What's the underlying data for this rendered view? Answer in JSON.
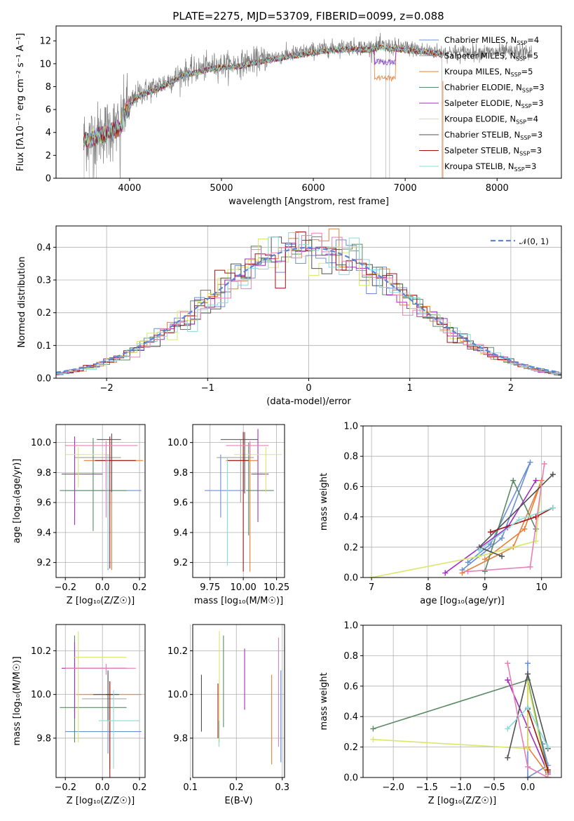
{
  "figure_title": "PLATE=2275, MJD=53709, FIBERID=0099, z=0.088",
  "colors": {
    "Chabrier MILES": "#6b8fd6",
    "Salpeter MILES": "#a0a0a0",
    "Kroupa MILES": "#e8803a",
    "Chabrier ELODIE": "#5a8a64",
    "Salpeter ELODIE": "#a52fbf",
    "Kroupa ELODIE": "#d8e86a",
    "Chabrier STELIB": "#505050",
    "Salpeter STELIB": "#a01414",
    "Kroupa STELIB": "#8adada",
    "data": "#808080",
    "pink": "#e880b8"
  },
  "chart_data": [
    {
      "id": "spectrum",
      "type": "line",
      "title": "PLATE=2275, MJD=53709, FIBERID=0099, z=0.088",
      "xlabel": "wavelength [Angstrom, rest frame]",
      "ylabel": "Flux [fλ10⁻¹⁷ erg cm⁻² s⁻¹ A⁻¹]",
      "xlim": [
        3200,
        8700
      ],
      "ylim": [
        0,
        13.3
      ],
      "xticks": [
        4000,
        5000,
        6000,
        7000,
        8000
      ],
      "yticks": [
        0,
        2,
        4,
        6,
        8,
        10,
        12
      ],
      "legend_position": "right",
      "legend": [
        {
          "name": "Chabrier MILES, N",
          "sub": "SSP",
          "tail": "=4",
          "color": "#6b8fd6"
        },
        {
          "name": "Salpeter MILES, N",
          "sub": "SSP",
          "tail": "=5",
          "color": "#a0a0a0"
        },
        {
          "name": "Kroupa MILES, N",
          "sub": "SSP",
          "tail": "=5",
          "color": "#e8803a"
        },
        {
          "name": "Chabrier ELODIE, N",
          "sub": "SSP",
          "tail": "=3",
          "color": "#5a8a64"
        },
        {
          "name": "Salpeter ELODIE, N",
          "sub": "SSP",
          "tail": "=3",
          "color": "#a52fbf"
        },
        {
          "name": "Kroupa ELODIE, N",
          "sub": "SSP",
          "tail": "=4",
          "color": "#d8e86a"
        },
        {
          "name": "Chabrier STELIB, N",
          "sub": "SSP",
          "tail": "=3",
          "color": "#505050"
        },
        {
          "name": "Salpeter STELIB, N",
          "sub": "SSP",
          "tail": "=3",
          "color": "#a01414"
        },
        {
          "name": "Kroupa STELIB, N",
          "sub": "SSP",
          "tail": "=3",
          "color": "#8adada"
        }
      ],
      "continuum_knots": {
        "x": [
          3500,
          3700,
          3900,
          3950,
          4100,
          4300,
          4600,
          4900,
          5200,
          5500,
          5800,
          6100,
          6400,
          6600,
          6700,
          7000,
          7200,
          7400
        ],
        "y": [
          3.4,
          4.0,
          4.6,
          6.0,
          7.4,
          8.0,
          9.2,
          9.8,
          10.0,
          10.5,
          10.9,
          11.3,
          11.5,
          11.4,
          11.6,
          11.4,
          11.2,
          11.0
        ]
      }
    },
    {
      "id": "residuals",
      "type": "histogram",
      "xlabel": "(data-model)/error",
      "ylabel": "Normed distribution",
      "xlim": [
        -2.5,
        2.5
      ],
      "ylim": [
        0,
        0.465
      ],
      "xticks": [
        -2,
        -1,
        0,
        1,
        2
      ],
      "yticks": [
        0.0,
        0.1,
        0.2,
        0.3,
        0.4
      ],
      "grid": true,
      "legend_position": "top-right",
      "legend": [
        {
          "name": "𝒩(0, 1)",
          "color": "#5b86d6",
          "style": "dashed"
        }
      ],
      "bin_width": 0.1
    },
    {
      "id": "age_vs_Z",
      "type": "errorbar",
      "xlabel": "Z [log₁₀(Z/Z☉)]",
      "ylabel": "age  [log₁₀(age/yr)]",
      "xlim": [
        -0.25,
        0.23
      ],
      "ylim": [
        9.1,
        10.12
      ],
      "xticks": [
        -0.2,
        0.0,
        0.2
      ],
      "yticks": [
        9.2,
        9.4,
        9.6,
        9.8,
        10.0
      ],
      "grid": true,
      "points": [
        {
          "x": 0.03,
          "y": 9.68,
          "xerr": [
            0.23,
            0.18
          ],
          "yerr": [
            0.53,
            0.17
          ],
          "color": "#6b8fd6"
        },
        {
          "x": 0.02,
          "y": 9.9,
          "xerr": [
            0.17,
            0.08
          ],
          "yerr": [
            0.2,
            0.1
          ],
          "color": "#a0a0a0"
        },
        {
          "x": 0.05,
          "y": 9.88,
          "xerr": [
            0.15,
            0.17
          ],
          "yerr": [
            0.73,
            0.12
          ],
          "color": "#e8803a"
        },
        {
          "x": -0.05,
          "y": 9.68,
          "xerr": [
            0.18,
            0.18
          ],
          "yerr": [
            0.27,
            0.35
          ],
          "color": "#5a8a64"
        },
        {
          "x": -0.15,
          "y": 9.79,
          "xerr": [
            0.07,
            0.15
          ],
          "yerr": [
            0.34,
            0.25
          ],
          "color": "#a52fbf"
        },
        {
          "x": -0.13,
          "y": 9.92,
          "xerr": [
            0.07,
            0.17
          ],
          "yerr": [
            0.22,
            0.05
          ],
          "color": "#d8e86a"
        },
        {
          "x": 0.05,
          "y": 10.02,
          "xerr": [
            0.08,
            0.05
          ],
          "yerr": [
            0.35,
            0.04
          ],
          "color": "#505050"
        },
        {
          "x": 0.04,
          "y": 9.88,
          "xerr": [
            0.08,
            0.14
          ],
          "yerr": [
            0.72,
            0.16
          ],
          "color": "#a01414"
        },
        {
          "x": 0.03,
          "y": 9.8,
          "xerr": [
            0.0,
            0.0
          ],
          "yerr": [
            0.64,
            0.12
          ],
          "color": "#8adada"
        },
        {
          "x": 0.02,
          "y": 9.98,
          "xerr": [
            0.22,
            0.17
          ],
          "yerr": [
            0.48,
            0.03
          ],
          "color": "#e880b8"
        }
      ]
    },
    {
      "id": "age_vs_mass",
      "type": "errorbar",
      "xlabel": "mass [log₁₀(M/M☉)]",
      "ylabel": "",
      "xlim": [
        9.62,
        10.31
      ],
      "ylim": [
        9.1,
        10.12
      ],
      "xticks": [
        9.75,
        10.0,
        10.25
      ],
      "yticks": [
        9.2,
        9.4,
        9.6,
        9.8,
        10.0
      ],
      "grid": true,
      "points": [
        {
          "x": 9.83,
          "y": 9.68,
          "xerr": [
            0.12,
            0.18
          ],
          "yerr": [
            0.18,
            0.24
          ],
          "color": "#6b8fd6"
        },
        {
          "x": 9.98,
          "y": 9.9,
          "xerr": [
            0.18,
            0.1
          ],
          "yerr": [
            0.3,
            0.12
          ],
          "color": "#a0a0a0"
        },
        {
          "x": 10.05,
          "y": 9.88,
          "xerr": [
            0.18,
            0.06
          ],
          "yerr": [
            0.74,
            0.12
          ],
          "color": "#e8803a"
        },
        {
          "x": 10.04,
          "y": 9.68,
          "xerr": [
            0.02,
            0.19
          ],
          "yerr": [
            0.3,
            0.32
          ],
          "color": "#5a8a64"
        },
        {
          "x": 10.11,
          "y": 9.79,
          "xerr": [
            0.05,
            0.08
          ],
          "yerr": [
            0.32,
            0.3
          ],
          "color": "#a52fbf"
        },
        {
          "x": 10.17,
          "y": 9.92,
          "xerr": [
            0.24,
            0.12
          ],
          "yerr": [
            0.25,
            0.05
          ],
          "color": "#d8e86a"
        },
        {
          "x": 10.01,
          "y": 10.02,
          "xerr": [
            0.18,
            0.1
          ],
          "yerr": [
            0.36,
            0.05
          ],
          "color": "#505050"
        },
        {
          "x": 10.0,
          "y": 9.88,
          "xerr": [
            0.12,
            0.04
          ],
          "yerr": [
            0.74,
            0.19
          ],
          "color": "#a01414"
        },
        {
          "x": 9.88,
          "y": 9.8,
          "xerr": [
            0.0,
            0.0
          ],
          "yerr": [
            0.62,
            0.1
          ],
          "color": "#8adada"
        },
        {
          "x": 10.05,
          "y": 9.98,
          "xerr": [
            0.18,
            0.14
          ],
          "yerr": [
            0.08,
            0.03
          ],
          "color": "#e880b8"
        }
      ]
    },
    {
      "id": "weight_vs_age",
      "type": "line",
      "xlabel": "age  [log₁₀(age/yr)]",
      "ylabel": "mass weight",
      "xlim": [
        6.85,
        10.35
      ],
      "ylim": [
        0,
        1.0
      ],
      "xticks": [
        7,
        8,
        9,
        10
      ],
      "yticks": [
        0.0,
        0.2,
        0.4,
        0.6,
        0.8,
        1.0
      ],
      "grid": true,
      "series": [
        {
          "color": "#6b8fd6",
          "x": [
            8.6,
            9.3,
            9.8,
            9.1,
            8.7
          ],
          "y": [
            0.05,
            0.26,
            0.76,
            0.22,
            0.1
          ]
        },
        {
          "color": "#e8803a",
          "x": [
            8.6,
            9.5,
            10.0,
            9.7,
            9.0
          ],
          "y": [
            0.03,
            0.2,
            0.64,
            0.32,
            0.12
          ]
        },
        {
          "color": "#5a8a64",
          "x": [
            9.0,
            9.5,
            9.9
          ],
          "y": [
            0.04,
            0.64,
            0.32
          ]
        },
        {
          "color": "#a52fbf",
          "x": [
            8.3,
            9.4,
            9.9
          ],
          "y": [
            0.03,
            0.33,
            0.64
          ]
        },
        {
          "color": "#d8e86a",
          "x": [
            7.0,
            8.9,
            9.9,
            10.0
          ],
          "y": [
            0.0,
            0.14,
            0.24,
            0.62
          ]
        },
        {
          "color": "#505050",
          "x": [
            9.3,
            8.9,
            10.2
          ],
          "y": [
            0.14,
            0.2,
            0.68
          ]
        },
        {
          "color": "#a01414",
          "x": [
            9.1,
            9.9,
            10.2
          ],
          "y": [
            0.3,
            0.4,
            0.46
          ]
        },
        {
          "color": "#8adada",
          "x": [
            8.9,
            9.6,
            10.2
          ],
          "y": [
            0.18,
            0.38,
            0.46
          ]
        },
        {
          "color": "#e880b8",
          "x": [
            8.7,
            9.8,
            10.05
          ],
          "y": [
            0.04,
            0.07,
            0.75
          ]
        }
      ]
    },
    {
      "id": "mass_vs_Z",
      "type": "errorbar",
      "xlabel": "Z [log₁₀(Z/Z☉)]",
      "ylabel": "mass [log₁₀(M/M☉)]",
      "xlim": [
        -0.25,
        0.23
      ],
      "ylim": [
        9.62,
        10.32
      ],
      "xticks": [
        -0.2,
        0.0,
        0.2
      ],
      "yticks": [
        9.8,
        10.0,
        10.2
      ],
      "grid": true,
      "points": [
        {
          "x": 0.03,
          "y": 9.83,
          "xerr": [
            0.23,
            0.18
          ],
          "yerr": [
            0.1,
            0.16
          ],
          "color": "#6b8fd6"
        },
        {
          "x": 0.03,
          "y": 9.98,
          "xerr": [
            0.14,
            0.1
          ],
          "yerr": [
            0.16,
            0.12
          ],
          "color": "#a0a0a0"
        },
        {
          "x": 0.04,
          "y": 10.0,
          "xerr": [
            0.18,
            0.17
          ],
          "yerr": [
            0.34,
            0.06
          ],
          "color": "#e8803a"
        },
        {
          "x": -0.15,
          "y": 9.94,
          "xerr": [
            0.08,
            0.28
          ],
          "yerr": [
            0.16,
            0.33
          ],
          "color": "#5a8a64"
        },
        {
          "x": -0.15,
          "y": 10.12,
          "xerr": [
            0.07,
            0.28
          ],
          "yerr": [
            0.23,
            0.12
          ],
          "color": "#a52fbf"
        },
        {
          "x": -0.13,
          "y": 10.17,
          "xerr": [
            0.02,
            0.26
          ],
          "yerr": [
            0.39,
            0.12
          ],
          "color": "#d8e86a"
        },
        {
          "x": 0.03,
          "y": 10.0,
          "xerr": [
            0.08,
            0.06
          ],
          "yerr": [
            0.12,
            0.11
          ],
          "color": "#505050"
        },
        {
          "x": 0.04,
          "y": 10.0,
          "xerr": [
            0.02,
            0.02
          ],
          "yerr": [
            0.38,
            0.06
          ],
          "color": "#a01414"
        },
        {
          "x": 0.06,
          "y": 9.88,
          "xerr": [
            0.08,
            0.14
          ],
          "yerr": [
            0.22,
            0.14
          ],
          "color": "#8adada"
        },
        {
          "x": 0.02,
          "y": 10.12,
          "xerr": [
            0.22,
            0.16
          ],
          "yerr": [
            0.03,
            0.02
          ],
          "color": "#e880b8"
        }
      ]
    },
    {
      "id": "mass_vs_ebv",
      "type": "errorbar",
      "xlabel": "E(B-V)",
      "ylabel": "",
      "xlim": [
        0.105,
        0.305
      ],
      "ylim": [
        9.62,
        10.32
      ],
      "xticks": [
        0.1,
        0.2,
        0.3
      ],
      "yticks": [
        9.8,
        10.0,
        10.2
      ],
      "grid": true,
      "points": [
        {
          "x": 0.124,
          "y": 9.96,
          "xerr": [
            0.0,
            0.0
          ],
          "yerr": [
            0.13,
            0.13
          ],
          "color": "#505050"
        },
        {
          "x": 0.16,
          "y": 9.95,
          "xerr": [
            0.0,
            0.0
          ],
          "yerr": [
            0.15,
            0.1
          ],
          "color": "#a01414"
        },
        {
          "x": 0.163,
          "y": 10.02,
          "xerr": [
            0.0,
            0.0
          ],
          "yerr": [
            0.24,
            0.27
          ],
          "color": "#d8e86a"
        },
        {
          "x": 0.162,
          "y": 9.84,
          "xerr": [
            0.0,
            0.0
          ],
          "yerr": [
            0.08,
            0.04
          ],
          "color": "#8adada"
        },
        {
          "x": 0.172,
          "y": 10.06,
          "xerr": [
            0.0,
            0.0
          ],
          "yerr": [
            0.21,
            0.21
          ],
          "color": "#5a8a64"
        },
        {
          "x": 0.218,
          "y": 10.07,
          "xerr": [
            0.0,
            0.0
          ],
          "yerr": [
            0.14,
            0.14
          ],
          "color": "#a52fbf"
        },
        {
          "x": 0.277,
          "y": 9.92,
          "xerr": [
            0.0,
            0.0
          ],
          "yerr": [
            0.24,
            0.17
          ],
          "color": "#e8803a"
        },
        {
          "x": 0.292,
          "y": 10.0,
          "xerr": [
            0.0,
            0.0
          ],
          "yerr": [
            0.24,
            0.26
          ],
          "color": "#e880b8"
        },
        {
          "x": 0.297,
          "y": 9.87,
          "xerr": [
            0.0,
            0.0
          ],
          "yerr": [
            0.18,
            0.24
          ],
          "color": "#6b8fd6"
        }
      ]
    },
    {
      "id": "weight_vs_Z",
      "type": "line",
      "xlabel": "Z [log₁₀(Z/Z☉)]",
      "ylabel": "mass weight",
      "xlim": [
        -2.45,
        0.5
      ],
      "ylim": [
        0,
        1.0
      ],
      "xticks": [
        -2.0,
        -1.5,
        -1.0,
        -0.5,
        0.0
      ],
      "yticks": [
        0.0,
        0.2,
        0.4,
        0.6,
        0.8,
        1.0
      ],
      "grid": true,
      "series": [
        {
          "color": "#6b8fd6",
          "x": [
            0.0,
            0.0,
            0.3,
            0.22
          ],
          "y": [
            0.75,
            0.0,
            0.08,
            0.22
          ]
        },
        {
          "color": "#e8803a",
          "x": [
            0.0,
            0.0,
            0.3
          ],
          "y": [
            0.64,
            0.2,
            0.02
          ]
        },
        {
          "color": "#5a8a64",
          "x": [
            -2.3,
            0.0,
            0.3
          ],
          "y": [
            0.32,
            0.64,
            0.04
          ]
        },
        {
          "color": "#a52fbf",
          "x": [
            -0.3,
            0.0,
            0.3
          ],
          "y": [
            0.64,
            0.33,
            0.03
          ]
        },
        {
          "color": "#d8e86a",
          "x": [
            -2.3,
            0.0,
            0.0,
            0.3
          ],
          "y": [
            0.25,
            0.19,
            0.62,
            0.0
          ]
        },
        {
          "color": "#505050",
          "x": [
            -0.3,
            0.0,
            0.3
          ],
          "y": [
            0.13,
            0.68,
            0.19
          ]
        },
        {
          "color": "#a01414",
          "x": [
            0.0,
            0.3
          ],
          "y": [
            0.45,
            0.05
          ]
        },
        {
          "color": "#8adada",
          "x": [
            -0.3,
            0.0,
            0.3
          ],
          "y": [
            0.32,
            0.46,
            0.2
          ]
        },
        {
          "color": "#e880b8",
          "x": [
            -0.3,
            0.0,
            0.3
          ],
          "y": [
            0.75,
            0.07,
            0.0
          ]
        }
      ]
    }
  ]
}
